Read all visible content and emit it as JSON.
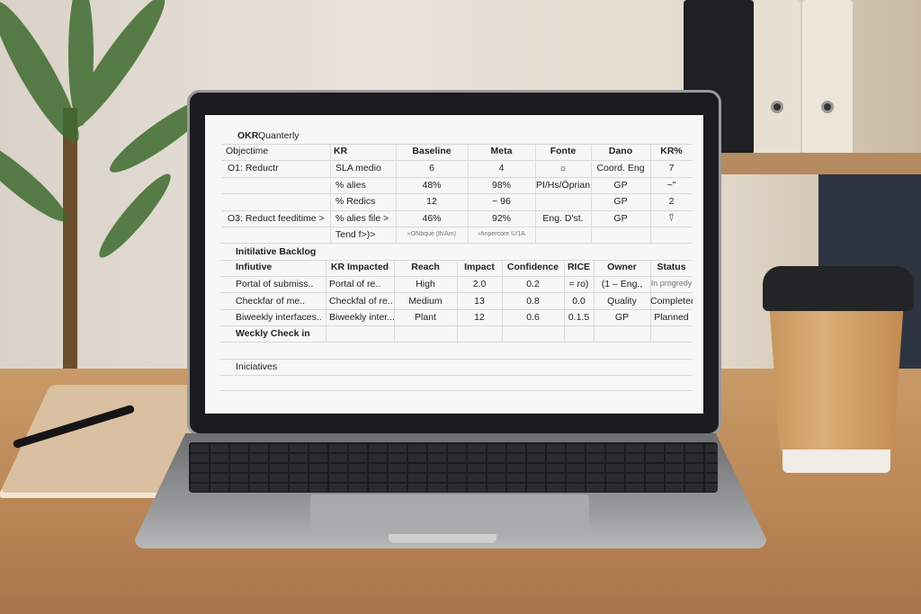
{
  "okr": {
    "title_bold": "OKR",
    "title_rest": " Quanterly",
    "columns": [
      "Objectime",
      "KR",
      "Baseline",
      "Meta",
      "Fonte",
      "Dano",
      "KR%"
    ],
    "rows": [
      [
        "O1: Reductr",
        "SLA medio",
        "6",
        "4",
        "☼",
        "Coord. Eng",
        "7"
      ],
      [
        "",
        "% alies",
        "48%",
        "98%",
        "PI/Hs/Öprian",
        "GP",
        "~\""
      ],
      [
        "",
        "% Redics",
        "12",
        "~ 96",
        "",
        "GP",
        "2"
      ],
      [
        "O3: Reduct feeditime >",
        "% alies file >",
        "46%",
        "92%",
        "Eng. D'st.",
        "GP",
        "⍢"
      ],
      [
        "",
        "Tend f>)>",
        "≈ONbque (lfi/Am)",
        "≈finpercore ©/1A",
        "",
        "",
        ""
      ]
    ]
  },
  "backlog": {
    "title": "Initilative Backlog",
    "columns": [
      "Infiutive",
      "KR Impacted",
      "Reach",
      "Impact",
      "Confidence",
      "RICE",
      "Owner",
      "Status"
    ],
    "rows": [
      [
        "Portal of submiss..",
        "Portal of re..",
        "High",
        "2.0",
        "0.2",
        "= ro)",
        "(1 – Eng.,",
        "In progredy"
      ],
      [
        "Checkfar of me..",
        "Checkfal of re..",
        "Medium",
        "13",
        "0.8",
        "0.0",
        "Quality",
        "Completed"
      ],
      [
        "Biweekly interfaces..",
        "Biweekly inter...",
        "Plant",
        "12",
        "0.6",
        "0.1.5",
        "GP",
        "Planned"
      ]
    ],
    "weekly_label": "Weckly Check in",
    "iniciatives_label": "Iniciatives"
  },
  "colors": {
    "screen": "#f7f7f6",
    "text": "#222222",
    "desk": "#c99a68",
    "cup": "#d3a26b"
  }
}
